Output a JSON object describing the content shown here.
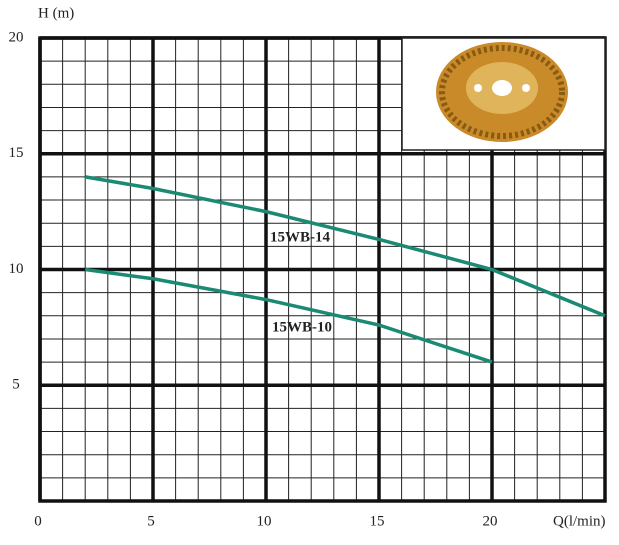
{
  "chart_data": {
    "type": "line",
    "x_label": "Q(l/min)",
    "y_label": "H (m)",
    "xlim": [
      0,
      25
    ],
    "ylim": [
      0,
      20
    ],
    "xticks": [
      0,
      5,
      10,
      15,
      20
    ],
    "yticks": [
      5,
      10,
      15,
      20
    ],
    "grid": true,
    "minor_step": 1,
    "series": [
      {
        "name": "15WB-14",
        "color": "#1b8a72",
        "x": [
          2,
          5,
          10,
          15,
          20,
          25
        ],
        "values": [
          14,
          13.5,
          12.5,
          11.3,
          10,
          8
        ]
      },
      {
        "name": "15WB-10",
        "color": "#1b8a72",
        "x": [
          2,
          5,
          10,
          15,
          20
        ],
        "values": [
          10,
          9.6,
          8.7,
          7.6,
          6
        ]
      }
    ]
  }
}
